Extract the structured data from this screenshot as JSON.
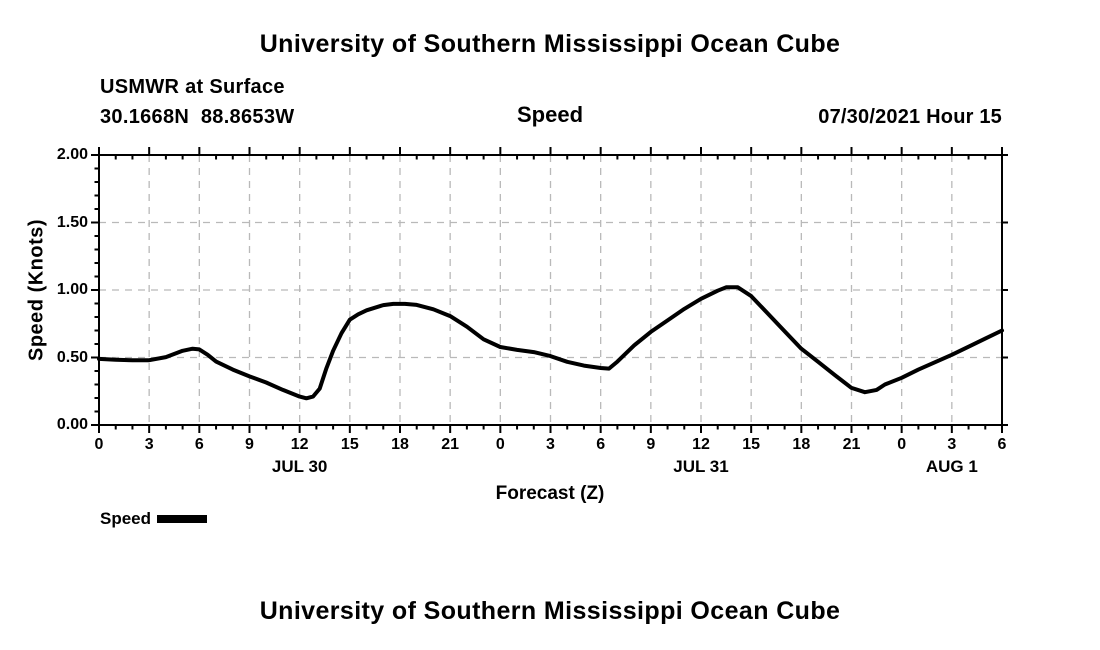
{
  "header": {
    "title": "University of Southern Mississippi Ocean Cube",
    "station": "USMWR at Surface",
    "coordinates": "30.1668N  88.8653W",
    "chart_title": "Speed",
    "datetime": "07/30/2021 Hour 15"
  },
  "legend": {
    "label": "Speed",
    "swatch_color": "#000000"
  },
  "footer": {
    "title": "University of Southern Mississippi Ocean Cube"
  },
  "chart_data": {
    "type": "line",
    "title": "Speed",
    "xlabel": "Forecast (Z)",
    "ylabel": "Speed (Knots)",
    "ylim": [
      0.0,
      2.0
    ],
    "x_hours": [
      0,
      54
    ],
    "y_major_ticks": [
      {
        "value": 0.0,
        "label": "0.00"
      },
      {
        "value": 0.5,
        "label": "0.50"
      },
      {
        "value": 1.0,
        "label": "1.00"
      },
      {
        "value": 1.5,
        "label": "1.50"
      },
      {
        "value": 2.0,
        "label": "2.00"
      }
    ],
    "y_minor_step": 0.1,
    "x_major_ticks": [
      {
        "hour": 0,
        "label": "0"
      },
      {
        "hour": 3,
        "label": "3"
      },
      {
        "hour": 6,
        "label": "6"
      },
      {
        "hour": 9,
        "label": "9"
      },
      {
        "hour": 12,
        "label": "12"
      },
      {
        "hour": 15,
        "label": "15"
      },
      {
        "hour": 18,
        "label": "18"
      },
      {
        "hour": 21,
        "label": "21"
      },
      {
        "hour": 24,
        "label": "0"
      },
      {
        "hour": 27,
        "label": "3"
      },
      {
        "hour": 30,
        "label": "6"
      },
      {
        "hour": 33,
        "label": "9"
      },
      {
        "hour": 36,
        "label": "12"
      },
      {
        "hour": 39,
        "label": "15"
      },
      {
        "hour": 42,
        "label": "18"
      },
      {
        "hour": 45,
        "label": "21"
      },
      {
        "hour": 48,
        "label": "0"
      },
      {
        "hour": 51,
        "label": "3"
      },
      {
        "hour": 54,
        "label": "6"
      }
    ],
    "x_minor_step": 1,
    "day_labels": [
      {
        "hour": 12,
        "label": "JUL 30"
      },
      {
        "hour": 36,
        "label": "JUL 31"
      },
      {
        "hour": 51,
        "label": "AUG 1"
      }
    ],
    "grid": {
      "show": true,
      "color": "#b9b9b9",
      "dash": "7 6"
    },
    "colors": {
      "axis": "#000000",
      "background": "#ffffff",
      "text": "#000000"
    },
    "series": [
      {
        "name": "Speed",
        "color": "#000000",
        "width": 4,
        "points": [
          [
            0,
            0.49
          ],
          [
            1,
            0.483
          ],
          [
            2,
            0.48
          ],
          [
            3,
            0.48
          ],
          [
            4,
            0.503
          ],
          [
            5,
            0.55
          ],
          [
            5.6,
            0.565
          ],
          [
            6,
            0.56
          ],
          [
            6.5,
            0.52
          ],
          [
            7,
            0.47
          ],
          [
            8,
            0.41
          ],
          [
            9,
            0.36
          ],
          [
            10,
            0.315
          ],
          [
            11,
            0.26
          ],
          [
            12,
            0.21
          ],
          [
            12.4,
            0.198
          ],
          [
            12.8,
            0.21
          ],
          [
            13.2,
            0.27
          ],
          [
            13.6,
            0.42
          ],
          [
            14,
            0.55
          ],
          [
            14.5,
            0.68
          ],
          [
            15,
            0.78
          ],
          [
            15.5,
            0.82
          ],
          [
            16,
            0.85
          ],
          [
            17,
            0.888
          ],
          [
            17.6,
            0.897
          ],
          [
            18.3,
            0.897
          ],
          [
            19,
            0.89
          ],
          [
            20,
            0.857
          ],
          [
            21,
            0.807
          ],
          [
            22,
            0.728
          ],
          [
            23,
            0.635
          ],
          [
            24,
            0.578
          ],
          [
            25,
            0.556
          ],
          [
            26,
            0.54
          ],
          [
            27,
            0.51
          ],
          [
            28,
            0.468
          ],
          [
            29,
            0.44
          ],
          [
            30,
            0.422
          ],
          [
            30.5,
            0.418
          ],
          [
            31,
            0.47
          ],
          [
            32,
            0.59
          ],
          [
            33,
            0.69
          ],
          [
            34,
            0.775
          ],
          [
            35,
            0.86
          ],
          [
            36,
            0.935
          ],
          [
            37,
            0.995
          ],
          [
            37.5,
            1.02
          ],
          [
            38.2,
            1.02
          ],
          [
            39,
            0.955
          ],
          [
            40,
            0.825
          ],
          [
            41,
            0.695
          ],
          [
            42,
            0.565
          ],
          [
            43,
            0.468
          ],
          [
            44,
            0.37
          ],
          [
            45,
            0.275
          ],
          [
            45.8,
            0.243
          ],
          [
            46.5,
            0.26
          ],
          [
            47,
            0.3
          ],
          [
            48,
            0.35
          ],
          [
            49,
            0.41
          ],
          [
            50,
            0.465
          ],
          [
            51,
            0.52
          ],
          [
            52,
            0.58
          ],
          [
            53,
            0.64
          ],
          [
            54,
            0.7
          ]
        ]
      }
    ]
  }
}
